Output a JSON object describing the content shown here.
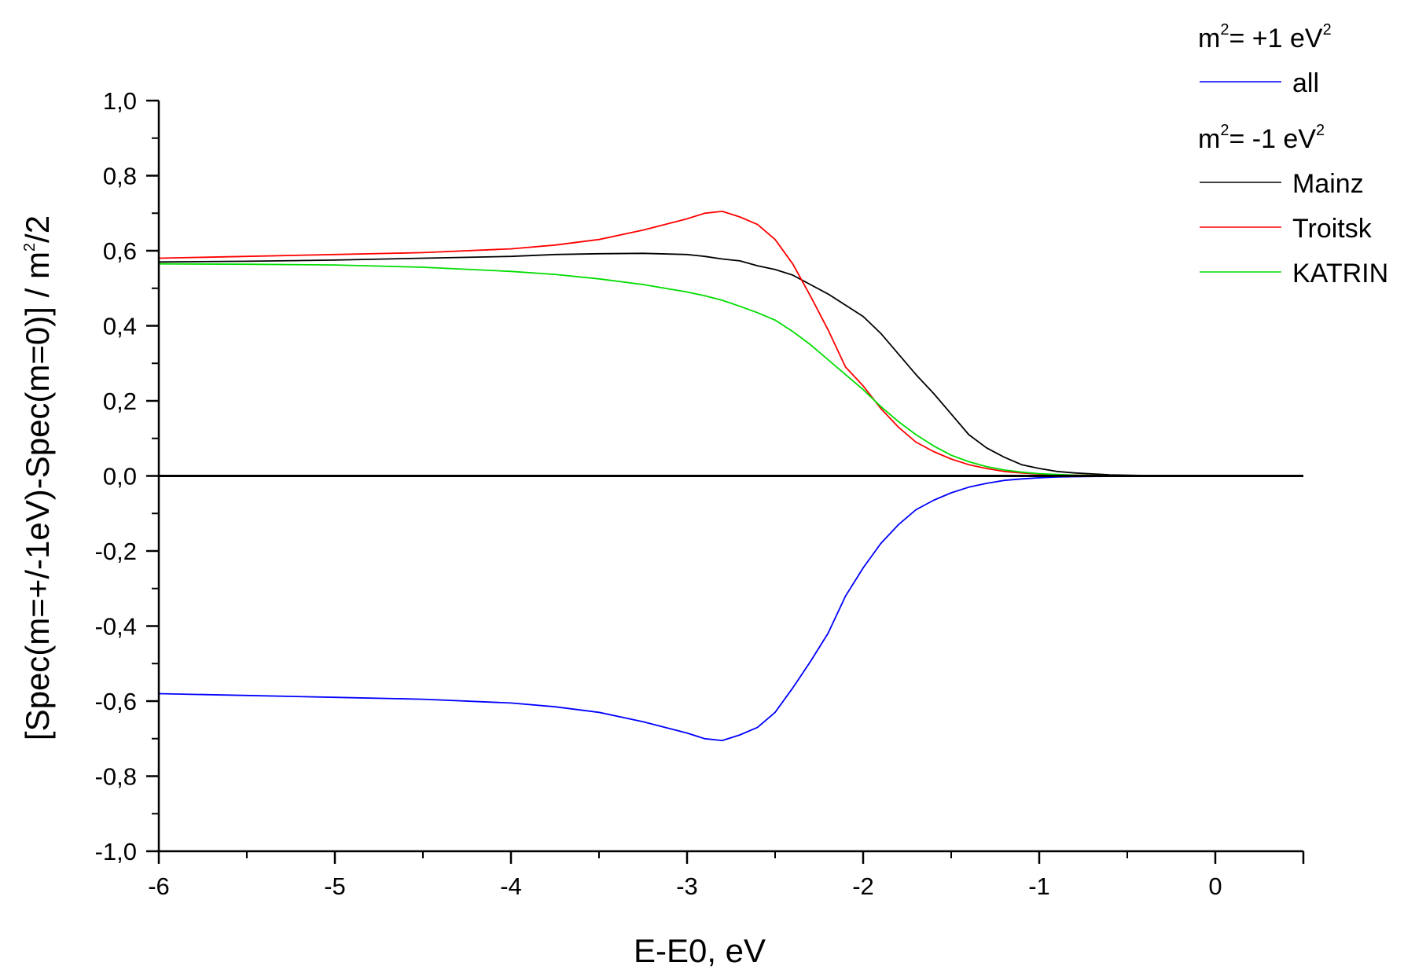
{
  "chart_data": {
    "type": "line",
    "xlabel": "E-E0, eV",
    "ylabel": "[Spec(m=+/-1eV)-Spec(m=0)] / m",
    "ylabel_sup": "2",
    "ylabel_tail": "/2",
    "xlim": [
      -6,
      0.5
    ],
    "ylim": [
      -1.0,
      1.0
    ],
    "x_ticks": [
      -6,
      -5,
      -4,
      -3,
      -2,
      -1,
      0
    ],
    "x_tick_labels": [
      "-6",
      "-5",
      "-4",
      "-3",
      "-2",
      "-1",
      "0"
    ],
    "y_ticks": [
      -1.0,
      -0.8,
      -0.6,
      -0.4,
      -0.2,
      0.0,
      0.2,
      0.4,
      0.6,
      0.8,
      1.0
    ],
    "y_tick_labels": [
      "-1,0",
      "-0,8",
      "-0,6",
      "-0,4",
      "-0,2",
      "0,0",
      "0,2",
      "0,4",
      "0,6",
      "0,8",
      "1,0"
    ],
    "grid": false,
    "zero_line": true,
    "legend_position": "top-right",
    "legend": {
      "group1_title": {
        "pre": "m",
        "sup1": "2",
        "mid": "= +1 eV",
        "sup2": "2"
      },
      "group2_title": {
        "pre": "m",
        "sup1": "2",
        "mid": "= -1 eV",
        "sup2": "2"
      }
    },
    "series": [
      {
        "name": "all",
        "group": 1,
        "color": "#0000ff",
        "x": [
          -6.0,
          -5.5,
          -5.0,
          -4.5,
          -4.0,
          -3.75,
          -3.5,
          -3.25,
          -3.0,
          -2.9,
          -2.8,
          -2.7,
          -2.6,
          -2.5,
          -2.4,
          -2.3,
          -2.2,
          -2.1,
          -2.0,
          -1.9,
          -1.8,
          -1.7,
          -1.6,
          -1.5,
          -1.4,
          -1.3,
          -1.2,
          -1.1,
          -1.0,
          -0.9,
          -0.8,
          -0.6,
          -0.4,
          -0.2,
          0.0
        ],
        "y": [
          -0.58,
          -0.585,
          -0.59,
          -0.595,
          -0.605,
          -0.615,
          -0.63,
          -0.655,
          -0.685,
          -0.7,
          -0.705,
          -0.69,
          -0.67,
          -0.63,
          -0.565,
          -0.495,
          -0.42,
          -0.32,
          -0.245,
          -0.18,
          -0.13,
          -0.09,
          -0.065,
          -0.045,
          -0.03,
          -0.02,
          -0.012,
          -0.008,
          -0.005,
          -0.003,
          -0.002,
          -0.001,
          0.0,
          0.0,
          0.0
        ]
      },
      {
        "name": "Mainz",
        "group": 2,
        "color": "#000000",
        "x": [
          -6.0,
          -5.5,
          -5.0,
          -4.5,
          -4.0,
          -3.75,
          -3.5,
          -3.25,
          -3.0,
          -2.9,
          -2.8,
          -2.7,
          -2.6,
          -2.5,
          -2.4,
          -2.3,
          -2.2,
          -2.1,
          -2.0,
          -1.9,
          -1.8,
          -1.7,
          -1.6,
          -1.5,
          -1.4,
          -1.3,
          -1.2,
          -1.1,
          -1.0,
          -0.9,
          -0.8,
          -0.6,
          -0.4,
          -0.2,
          0.0
        ],
        "y": [
          0.57,
          0.572,
          0.575,
          0.58,
          0.585,
          0.59,
          0.592,
          0.593,
          0.59,
          0.585,
          0.578,
          0.573,
          0.56,
          0.55,
          0.535,
          0.51,
          0.485,
          0.455,
          0.425,
          0.38,
          0.325,
          0.27,
          0.22,
          0.165,
          0.11,
          0.075,
          0.05,
          0.03,
          0.02,
          0.012,
          0.008,
          0.003,
          0.001,
          0.0,
          0.0
        ]
      },
      {
        "name": "Troitsk",
        "group": 2,
        "color": "#ff0000",
        "x": [
          -6.0,
          -5.5,
          -5.0,
          -4.5,
          -4.0,
          -3.75,
          -3.5,
          -3.25,
          -3.0,
          -2.9,
          -2.8,
          -2.7,
          -2.6,
          -2.5,
          -2.4,
          -2.3,
          -2.2,
          -2.1,
          -2.0,
          -1.9,
          -1.8,
          -1.7,
          -1.6,
          -1.5,
          -1.4,
          -1.3,
          -1.2,
          -1.1,
          -1.0,
          -0.9,
          -0.8,
          -0.6,
          -0.4,
          -0.2,
          0.0
        ],
        "y": [
          0.58,
          0.585,
          0.59,
          0.595,
          0.605,
          0.615,
          0.63,
          0.655,
          0.685,
          0.7,
          0.705,
          0.69,
          0.67,
          0.63,
          0.565,
          0.48,
          0.39,
          0.29,
          0.24,
          0.18,
          0.13,
          0.09,
          0.065,
          0.045,
          0.03,
          0.02,
          0.012,
          0.008,
          0.005,
          0.003,
          0.002,
          0.001,
          0.0,
          0.0,
          0.0
        ]
      },
      {
        "name": "KATRIN",
        "group": 2,
        "color": "#00dd00",
        "x": [
          -6.0,
          -5.5,
          -5.0,
          -4.5,
          -4.0,
          -3.75,
          -3.5,
          -3.25,
          -3.0,
          -2.9,
          -2.8,
          -2.7,
          -2.6,
          -2.5,
          -2.4,
          -2.3,
          -2.2,
          -2.1,
          -2.0,
          -1.9,
          -1.8,
          -1.7,
          -1.6,
          -1.5,
          -1.4,
          -1.3,
          -1.2,
          -1.1,
          -1.0,
          -0.9,
          -0.8,
          -0.6,
          -0.4,
          -0.2,
          0.0
        ],
        "y": [
          0.565,
          0.564,
          0.562,
          0.556,
          0.545,
          0.537,
          0.525,
          0.51,
          0.49,
          0.48,
          0.468,
          0.452,
          0.435,
          0.415,
          0.385,
          0.35,
          0.31,
          0.27,
          0.23,
          0.185,
          0.145,
          0.11,
          0.08,
          0.055,
          0.038,
          0.025,
          0.016,
          0.01,
          0.006,
          0.004,
          0.002,
          0.001,
          0.0,
          0.0,
          0.0
        ]
      }
    ]
  }
}
